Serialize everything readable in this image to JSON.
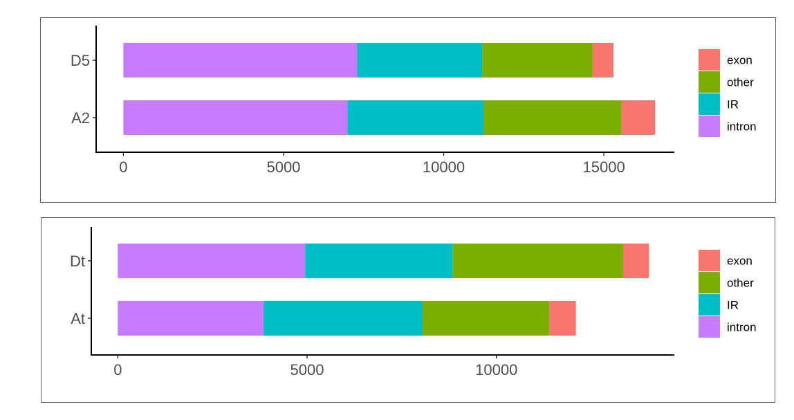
{
  "colors": {
    "exon": "#F8766D",
    "other": "#7CAE00",
    "IR": "#00BFC4",
    "intron": "#C77CFF",
    "axis": "#000000",
    "tick_label": "#4D4D4D",
    "border": "#5A5A5A"
  },
  "chart_data": [
    {
      "type": "bar",
      "orientation": "horizontal",
      "stacked": true,
      "categories": [
        "D5",
        "A2"
      ],
      "series": [
        {
          "name": "intron",
          "values": [
            7300,
            7000
          ]
        },
        {
          "name": "IR",
          "values": [
            3900,
            4250
          ]
        },
        {
          "name": "other",
          "values": [
            3450,
            4300
          ]
        },
        {
          "name": "exon",
          "values": [
            650,
            1050
          ]
        }
      ],
      "xlim": [
        -850,
        17200
      ],
      "xticks": [
        0,
        5000,
        10000,
        15000
      ],
      "xtick_labels": [
        "0",
        "5000",
        "10000",
        "15000"
      ],
      "legend": {
        "position": "right",
        "entries": [
          "exon",
          "other",
          "IR",
          "intron"
        ]
      },
      "grid": false
    },
    {
      "type": "bar",
      "orientation": "horizontal",
      "stacked": true,
      "categories": [
        "Dt",
        "At"
      ],
      "series": [
        {
          "name": "intron",
          "values": [
            4950,
            3850
          ]
        },
        {
          "name": "IR",
          "values": [
            3900,
            4200
          ]
        },
        {
          "name": "other",
          "values": [
            4500,
            3350
          ]
        },
        {
          "name": "exon",
          "values": [
            680,
            700
          ]
        }
      ],
      "xlim": [
        -700,
        14700
      ],
      "xticks": [
        0,
        5000,
        10000
      ],
      "xtick_labels": [
        "0",
        "5000",
        "10000"
      ],
      "legend": {
        "position": "right",
        "entries": [
          "exon",
          "other",
          "IR",
          "intron"
        ]
      },
      "grid": false
    }
  ]
}
